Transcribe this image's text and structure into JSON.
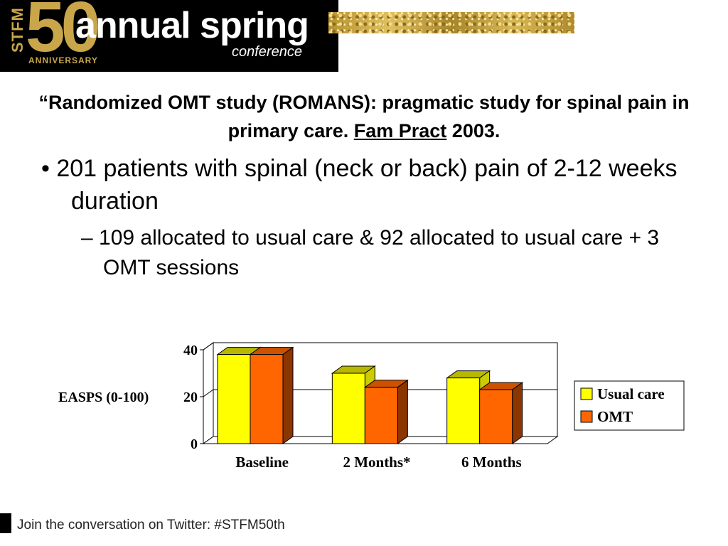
{
  "header": {
    "logo_stfm": "STFM",
    "logo_50": "50",
    "logo_anniversary": "ANNIVERSARY",
    "logo_annual_spring": "annual spring",
    "logo_conference": "conference"
  },
  "slide": {
    "title_part1": "“Randomized OMT study (ROMANS): pragmatic study for spinal pain in primary care.  ",
    "title_journal": "Fam Pract",
    "title_part2": " 2003.",
    "bullet1": "•  201 patients with spinal (neck or back) pain of 2-12 weeks duration",
    "bullet2": "– 109 allocated to usual care & 92 allocated to usual care + 3 OMT sessions"
  },
  "footer": {
    "text": "Join the conversation on Twitter: #STFM50th"
  },
  "chart_data": {
    "type": "bar",
    "style": "3d-clustered",
    "categories": [
      "Baseline",
      "2 Months*",
      "6 Months"
    ],
    "series": [
      {
        "name": "Usual care",
        "values": [
          38,
          30,
          28
        ],
        "color": "#ffff00",
        "side": "#cccc00",
        "top": "#b8b800"
      },
      {
        "name": "OMT",
        "values": [
          38,
          24,
          23
        ],
        "color": "#ff6600",
        "side": "#8b3500",
        "top": "#cc5200"
      }
    ],
    "ylabel": "EASPS (0-100)",
    "yticks": [
      0,
      20,
      40
    ],
    "ylim": [
      0,
      40
    ],
    "gridlines": true,
    "legend_position": "right"
  }
}
